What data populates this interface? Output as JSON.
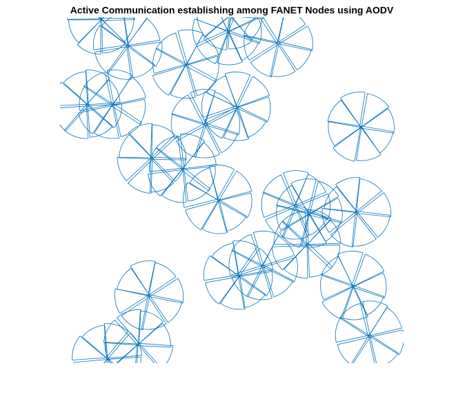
{
  "chart_data": {
    "type": "scatter",
    "title": "Active Communication establishing among FANET Nodes using AODV",
    "color": "#0072bd",
    "x": [
      12.0,
      19.7,
      36.7,
      48.8,
      63.4,
      49.4,
      8.0,
      15.3,
      51.4,
      42.2,
      87.6,
      26.7,
      35.7,
      46.0,
      68.5,
      72.5,
      86.3,
      71.9,
      52.0,
      59.0,
      85.3,
      25.9,
      22.7,
      13.7,
      90.0
    ],
    "y": [
      99.4,
      91.8,
      86.3,
      96.0,
      92.6,
      100.6,
      74.7,
      74.7,
      74.1,
      69.1,
      68.3,
      59.2,
      56.2,
      47.2,
      45.6,
      43.2,
      43.6,
      34.3,
      25.3,
      28.1,
      22.3,
      19.5,
      5.4,
      1.4,
      7.9
    ],
    "xlim": [
      0,
      100
    ],
    "ylim": [
      0,
      100
    ]
  }
}
